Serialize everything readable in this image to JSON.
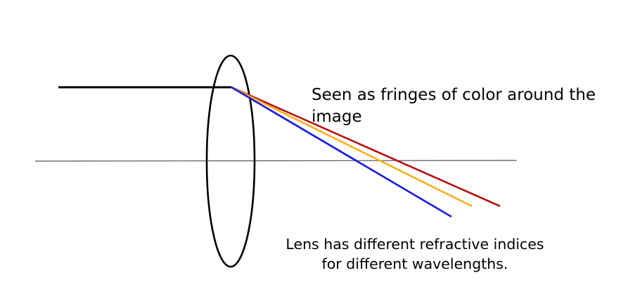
{
  "annotations": {
    "fringes_line1": "Seen as fringes of color around the",
    "fringes_line2": "image",
    "lens_line1": "Lens has different refractive indices",
    "lens_line2": "for different wavelengths."
  },
  "rays": [
    {
      "color_name": "red",
      "color": "#b40f0f"
    },
    {
      "color_name": "orange",
      "color": "#f5b01c"
    },
    {
      "color_name": "blue",
      "color": "#1a1ae0"
    }
  ],
  "colors": {
    "lens_outline": "#000000",
    "incident_ray": "#000000",
    "optical_axis": "#555555",
    "text": "#000000"
  }
}
